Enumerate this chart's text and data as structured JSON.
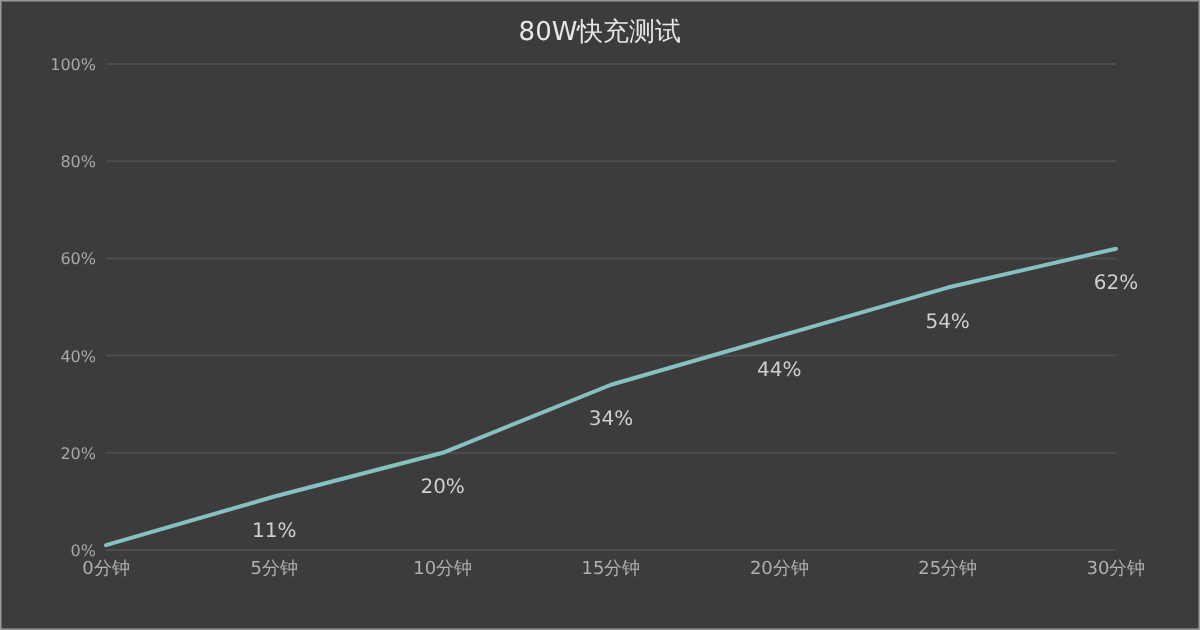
{
  "chart_data": {
    "type": "line",
    "title": "80W快充测试",
    "categories": [
      "0分钟",
      "5分钟",
      "10分钟",
      "15分钟",
      "20分钟",
      "25分钟",
      "30分钟"
    ],
    "values": [
      1,
      11,
      20,
      34,
      44,
      54,
      62
    ],
    "value_labels": [
      null,
      "11%",
      "20%",
      "34%",
      "44%",
      "54%",
      "62%"
    ],
    "color": "#86c1c2",
    "ylim": [
      0,
      100
    ],
    "yticks": [
      {
        "value": 0,
        "label": "0%"
      },
      {
        "value": 20,
        "label": "20%"
      },
      {
        "value": 40,
        "label": "40%"
      },
      {
        "value": 60,
        "label": "60%"
      },
      {
        "value": 80,
        "label": "80%"
      },
      {
        "value": 100,
        "label": "100%"
      }
    ],
    "grid": "y",
    "marker": "none",
    "line_style": "solid"
  }
}
